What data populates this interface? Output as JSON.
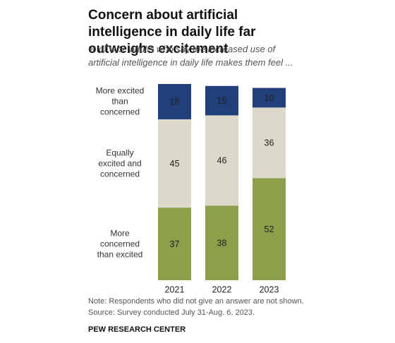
{
  "chart_data": {
    "type": "stacked_bar",
    "title": "Concern about artificial intelligence in daily life far outweighs excitement",
    "subtitle": "% of U.S. adults who say the increased use of artificial intelligence in daily life makes them feel ...",
    "categories": [
      "2021",
      "2022",
      "2023"
    ],
    "series": [
      {
        "name": "More concerned than excited",
        "color": "#8e9f4b",
        "label_color": "#ffffff",
        "values": [
          37,
          38,
          52
        ]
      },
      {
        "name": "Equally excited and concerned",
        "color": "#dcd9ca",
        "label_color": "#333333",
        "values": [
          45,
          46,
          36
        ]
      },
      {
        "name": "More excited than concerned",
        "color": "#213f79",
        "label_color": "#ffffff",
        "values": [
          18,
          15,
          10
        ]
      }
    ],
    "ylim": [
      0,
      100
    ],
    "note": "Note: Respondents who did not give an answer are not shown.",
    "source": "Source: Survey conducted July 31-Aug. 6, 2023.",
    "credit": "PEW RESEARCH CENTER"
  }
}
